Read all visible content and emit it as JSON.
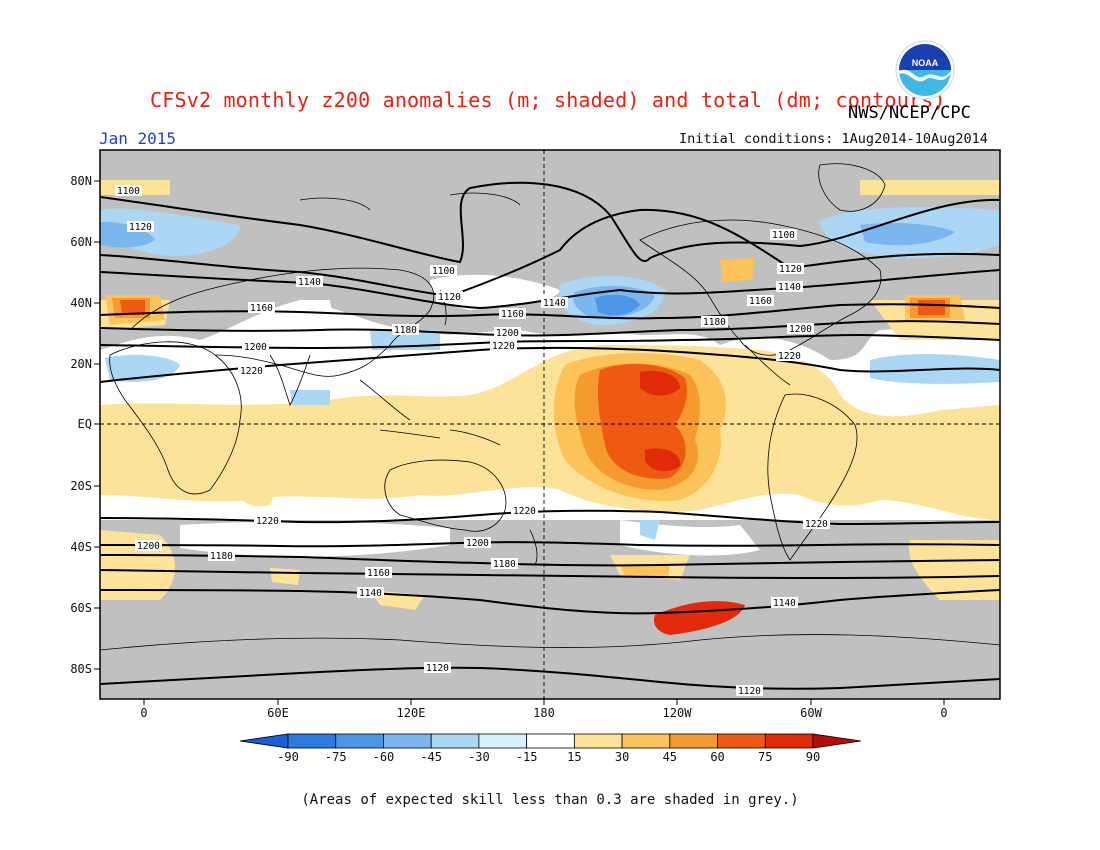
{
  "header": {
    "title": "CFSv2 monthly z200 anomalies (m; shaded) and total (dm; contours)",
    "agency": "NWS/NCEP/CPC",
    "valid_month": "Jan 2015",
    "initial_conditions": "Initial conditions: 1Aug2014-10Aug2014"
  },
  "logo": {
    "text": "NOAA",
    "icon": "noaa-logo-icon"
  },
  "axes": {
    "lat_ticks": [
      "80N",
      "60N",
      "40N",
      "20N",
      "EQ",
      "20S",
      "40S",
      "60S",
      "80S"
    ],
    "lon_ticks": [
      "0",
      "60E",
      "120E",
      "180",
      "120W",
      "60W",
      "0"
    ]
  },
  "colorbar": {
    "labels": [
      "-90",
      "-75",
      "-60",
      "-45",
      "-30",
      "-15",
      "15",
      "30",
      "45",
      "60",
      "75",
      "90"
    ],
    "colors": [
      "#1a5fd6",
      "#2c7be0",
      "#4c96e8",
      "#7cb6ef",
      "#abd7f5",
      "#d6f2fb",
      "#ffffff",
      "#fde39a",
      "#fbc35a",
      "#f59a2e",
      "#ef5a12",
      "#e02a0a",
      "#b80c08"
    ]
  },
  "contour_labels": {
    "c1100a": "1100",
    "c1100b": "1100",
    "c1100c": "1100",
    "c1120a": "1120",
    "c1120b": "1120",
    "c1120c": "1120",
    "c1120d": "1120",
    "c1120e": "1120",
    "c1140a": "1140",
    "c1140b": "1140",
    "c1140c": "1140",
    "c1140d": "1140",
    "c1140e": "1140",
    "c1160a": "1160",
    "c1160b": "1160",
    "c1160c": "1160",
    "c1160d": "1160",
    "c1180a": "1180",
    "c1180b": "1180",
    "c1180c": "1180",
    "c1180d": "1180",
    "c1200a": "1200",
    "c1200b": "1200",
    "c1200c": "1200",
    "c1200d": "1200",
    "c1200e": "1200",
    "c1220a": "1220",
    "c1220b": "1220",
    "c1220c": "1220",
    "c1220d": "1220",
    "c1220e": "1220",
    "c1220f": "1220"
  },
  "footnote": "(Areas of expected skill less than 0.3 are shaded in grey.)",
  "colors": {
    "title": "#e8200f",
    "month": "#1e3fd8",
    "skill_grey": "#c0c0c0",
    "land_outline": "#000000"
  }
}
